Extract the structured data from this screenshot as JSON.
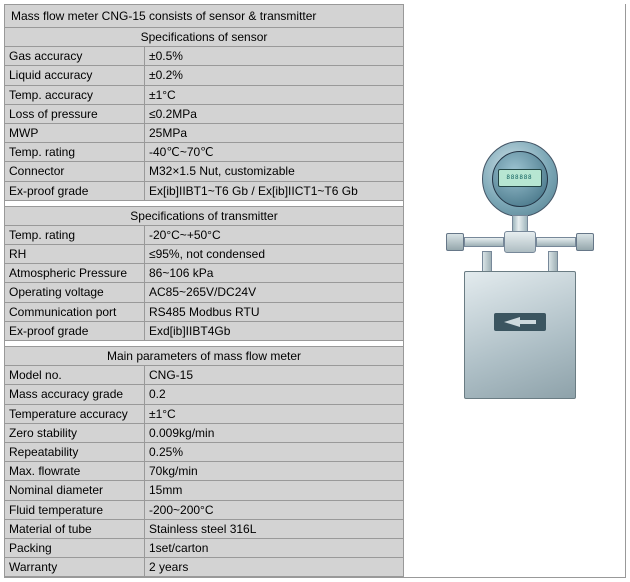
{
  "title": "Mass flow meter CNG-15 consists of sensor & transmitter",
  "sections": [
    {
      "header": "Specifications of sensor",
      "rows": [
        {
          "label": "Gas accuracy",
          "value": "±0.5%"
        },
        {
          "label": "Liquid accuracy",
          "value": "±0.2%"
        },
        {
          "label": "Temp. accuracy",
          "value": "±1°C"
        },
        {
          "label": "Loss of pressure",
          "value": "≤0.2MPa"
        },
        {
          "label": "MWP",
          "value": "25MPa"
        },
        {
          "label": "Temp. rating",
          "value": "-40℃~70℃"
        },
        {
          "label": "Connector",
          "value": "M32×1.5 Nut, customizable"
        },
        {
          "label": "Ex-proof grade",
          "value": "Ex[ib]IIBT1~T6 Gb / Ex[ib]IICT1~T6 Gb"
        }
      ]
    },
    {
      "header": "Specifications of transmitter",
      "rows": [
        {
          "label": "Temp. rating",
          "value": "-20°C~+50°C"
        },
        {
          "label": "RH",
          "value": "≤95%, not condensed"
        },
        {
          "label": "Atmospheric Pressure",
          "value": "86~106 kPa"
        },
        {
          "label": "Operating voltage",
          "value": "AC85~265V/DC24V"
        },
        {
          "label": "Communication port",
          "value": "RS485 Modbus RTU"
        },
        {
          "label": "Ex-proof grade",
          "value": "Exd[ib]IIBT4Gb"
        }
      ]
    },
    {
      "header": "Main parameters of mass flow meter",
      "rows": [
        {
          "label": "Model no.",
          "value": "CNG-15"
        },
        {
          "label": "Mass accuracy grade",
          "value": "0.2"
        },
        {
          "label": "Temperature accuracy",
          "value": "±1°C"
        },
        {
          "label": "Zero stability",
          "value": "0.009kg/min"
        },
        {
          "label": "Repeatability",
          "value": "0.25%"
        },
        {
          "label": "Max. flowrate",
          "value": "70kg/min"
        },
        {
          "label": "Nominal diameter",
          "value": "15mm"
        },
        {
          "label": "Fluid temperature",
          "value": "-200~200°C"
        },
        {
          "label": "Material of tube",
          "value": "Stainless steel 316L"
        },
        {
          "label": "Packing",
          "value": "1set/carton"
        },
        {
          "label": "Warranty",
          "value": "2 years"
        }
      ]
    }
  ],
  "device": {
    "lcd_text": "888888",
    "colors": {
      "head": "#7da8b7",
      "body": "#aebfc6",
      "plate": "#3b5560",
      "arrow": "#cdd9dd"
    }
  }
}
